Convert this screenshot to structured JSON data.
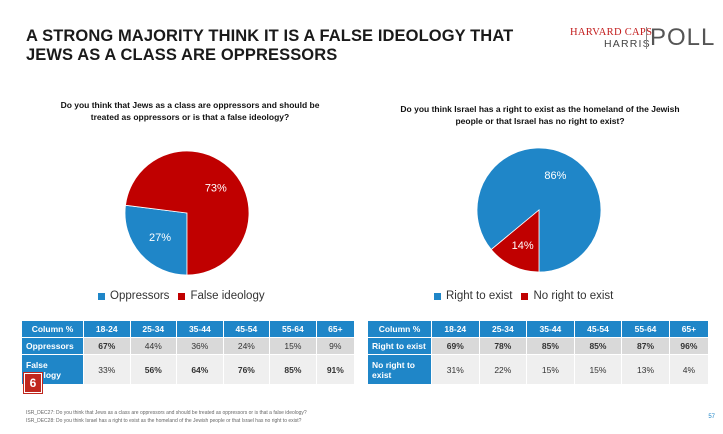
{
  "title": "A STRONG MAJORITY THINK IT IS A FALSE IDEOLOGY THAT JEWS AS A CLASS ARE OPPRESSORS",
  "logo": {
    "line1": "HARVARD CAPS",
    "line2": "HARRIS",
    "line3": "POLL"
  },
  "colors": {
    "blue": "#1f86c8",
    "red": "#c00000",
    "badge": "#c0281f"
  },
  "badge": "6",
  "page_number": "57",
  "footnotes": [
    "ISR_DEC27: Do you think that Jews as a class are oppressors and should be treated as oppressors or is that a false ideology?",
    "ISR_DEC28: Do you think Israel has a right to exist as the homeland of the Jewish people or that Israel has no right to exist?"
  ],
  "chart_data": [
    {
      "type": "pie",
      "title": "Do you think that Jews as a class are oppressors and should be treated as oppressors or is that a false ideology?",
      "labels": [
        "Oppressors",
        "False ideology"
      ],
      "values": [
        27,
        73
      ],
      "value_labels": [
        "27%",
        "73%"
      ],
      "colors": [
        "#1f86c8",
        "#c00000"
      ],
      "legend": "bottom"
    },
    {
      "type": "pie",
      "title": "Do you think Israel has a right to exist as the homeland of the Jewish people or that Israel has no right to exist?",
      "labels": [
        "Right to exist",
        "No right to exist"
      ],
      "values": [
        86,
        14
      ],
      "value_labels": [
        "86%",
        "14%"
      ],
      "colors": [
        "#1f86c8",
        "#c00000"
      ],
      "legend": "bottom"
    },
    {
      "type": "table",
      "columns": [
        "Column %",
        "18-24",
        "25-34",
        "35-44",
        "45-54",
        "55-64",
        "65+"
      ],
      "rows": [
        {
          "label": "Oppressors",
          "values": [
            "67%",
            "44%",
            "36%",
            "24%",
            "15%",
            "9%"
          ],
          "bold": [
            true,
            false,
            false,
            false,
            false,
            false
          ]
        },
        {
          "label": "False ideology",
          "values": [
            "33%",
            "56%",
            "64%",
            "76%",
            "85%",
            "91%"
          ],
          "bold": [
            false,
            true,
            true,
            true,
            true,
            true
          ]
        }
      ]
    },
    {
      "type": "table",
      "columns": [
        "Column %",
        "18-24",
        "25-34",
        "35-44",
        "45-54",
        "55-64",
        "65+"
      ],
      "rows": [
        {
          "label": "Right to exist",
          "values": [
            "69%",
            "78%",
            "85%",
            "85%",
            "87%",
            "96%"
          ],
          "bold": [
            true,
            true,
            true,
            true,
            true,
            true
          ]
        },
        {
          "label": "No right to exist",
          "values": [
            "31%",
            "22%",
            "15%",
            "15%",
            "13%",
            "4%"
          ],
          "bold": [
            false,
            false,
            false,
            false,
            false,
            false
          ]
        }
      ]
    }
  ]
}
